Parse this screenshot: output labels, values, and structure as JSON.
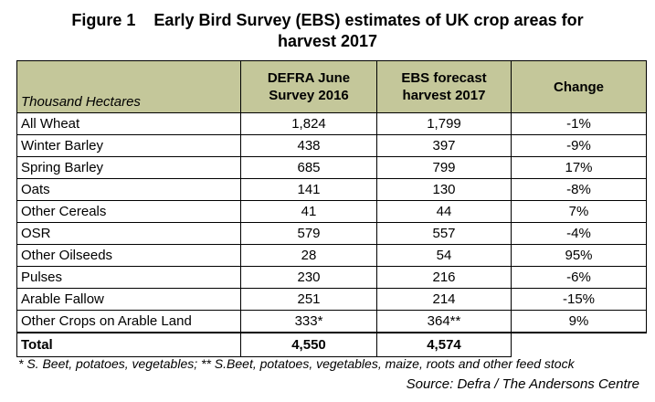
{
  "title": {
    "line1": "Figure 1    Early Bird Survey (EBS) estimates of UK crop areas for",
    "line2": "harvest 2017"
  },
  "table": {
    "headers": [
      "Thousand Hectares",
      "DEFRA June Survey 2016",
      "EBS forecast harvest 2017",
      "Change"
    ],
    "rows": [
      [
        "All Wheat",
        "1,824",
        "1,799",
        "-1%"
      ],
      [
        "Winter Barley",
        "438",
        "397",
        "-9%"
      ],
      [
        "Spring Barley",
        "685",
        "799",
        "17%"
      ],
      [
        "Oats",
        "141",
        "130",
        "-8%"
      ],
      [
        "Other Cereals",
        "41",
        "44",
        "7%"
      ],
      [
        "OSR",
        "579",
        "557",
        "-4%"
      ],
      [
        "Other Oilseeds",
        "28",
        "54",
        "95%"
      ],
      [
        "Pulses",
        "230",
        "216",
        "-6%"
      ],
      [
        "Arable Fallow",
        "251",
        "214",
        "-15%"
      ],
      [
        "Other Crops on Arable Land",
        "333*",
        "364**",
        "9%"
      ]
    ],
    "total": [
      "Total",
      "4,550",
      "4,574"
    ]
  },
  "footnote": "* S. Beet, potatoes, vegetables; ** S.Beet, potatoes, vegetables, maize, roots and other feed stock",
  "source": "Source: Defra / The Andersons Centre"
}
